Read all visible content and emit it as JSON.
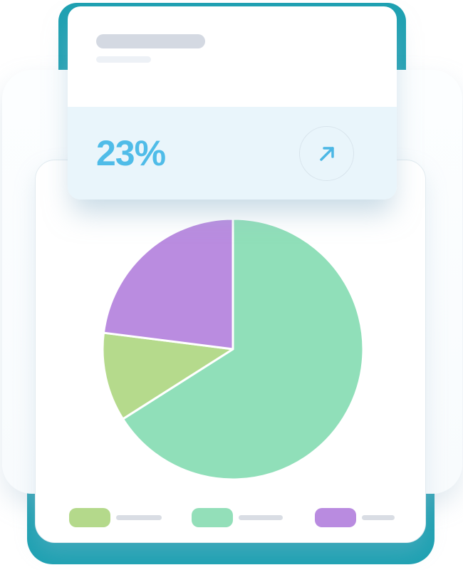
{
  "colors": {
    "teal": "#1ea1b2",
    "backdrop": "#fbfdfe",
    "stat_footer_bg": "#e9f5fb",
    "stat_value": "#4fbce8",
    "arrow": "#4bb7e5",
    "circle_border": "#d8e4ec",
    "placeholder_dark": "#d4d9e2",
    "placeholder_light": "#edf1f6",
    "legend_line": "#d9dde4"
  },
  "stat_card": {
    "value": "23%",
    "action_icon": "arrow-up-right-icon"
  },
  "chart_data": {
    "type": "pie",
    "title": "",
    "start_angle_deg": 0,
    "direction": "clockwise",
    "slices": [
      {
        "name": "green-segment",
        "value": 66,
        "color": "#90dfb9"
      },
      {
        "name": "olive-segment",
        "value": 11,
        "color": "#b5da8c"
      },
      {
        "name": "purple-segment",
        "value": 23,
        "color": "#ba8ce0"
      }
    ],
    "highlighted_value": "23%",
    "legend_position": "bottom",
    "legend": [
      {
        "name": "olive-legend",
        "color": "#b4d98b"
      },
      {
        "name": "green-legend",
        "color": "#93dfb9"
      },
      {
        "name": "purple-legend",
        "color": "#b98be0"
      }
    ]
  }
}
